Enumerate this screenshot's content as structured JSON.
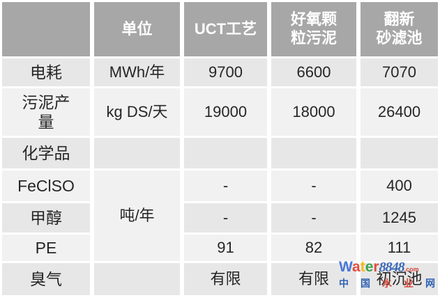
{
  "table": {
    "columns": [
      "",
      "单位",
      "UCT工艺",
      "好氧颗\n粒污泥",
      "翻新\n砂滤池"
    ],
    "rows": [
      {
        "label": "电耗",
        "unit": "MWh/年",
        "uct": "9700",
        "granular": "6600",
        "sand": "7070"
      },
      {
        "label": "污泥产\n量",
        "unit": "kg DS/天",
        "uct": "19000",
        "granular": "18000",
        "sand": "26400"
      },
      {
        "label": "化学品",
        "unit": "",
        "uct": "",
        "granular": "",
        "sand": ""
      },
      {
        "label": "FeClSO",
        "unit": "吨/年",
        "uct": "-",
        "granular": "-",
        "sand": "400"
      },
      {
        "label": "甲醇",
        "uct": "-",
        "granular": "-",
        "sand": "1245"
      },
      {
        "label": "PE",
        "uct": "91",
        "granular": "82",
        "sand": "111"
      },
      {
        "label": "臭气",
        "unit": "",
        "uct": "有限",
        "granular": "有限",
        "sand": "初沉池"
      }
    ]
  },
  "colors": {
    "header_bg": "#a7a7a7",
    "header_text": "#ffffff",
    "band_dark": "#e7e7e7",
    "band_light": "#f1f1f1",
    "merged_cell_bg": "#fdfdfd",
    "body_text": "#262626"
  },
  "watermark": {
    "brand": [
      {
        "ch": "W",
        "color": "#3a6fd8"
      },
      {
        "ch": "a",
        "color": "#e2402f"
      },
      {
        "ch": "t",
        "color": "#f6b509"
      },
      {
        "ch": "e",
        "color": "#2f9e44"
      },
      {
        "ch": "r",
        "color": "#e2402f"
      }
    ],
    "number": "8848",
    "number_color": "#2f5fb3",
    "suffix": ".com",
    "suffix_color": "#d43a2a",
    "cn": [
      {
        "ch": "中",
        "color": "#2056b0"
      },
      {
        "ch": "国",
        "color": "#2056b0"
      },
      {
        "ch": "水",
        "color": "#d43a2a"
      },
      {
        "ch": "业",
        "color": "#d43a2a"
      },
      {
        "ch": "网",
        "color": "#2056b0"
      }
    ]
  }
}
